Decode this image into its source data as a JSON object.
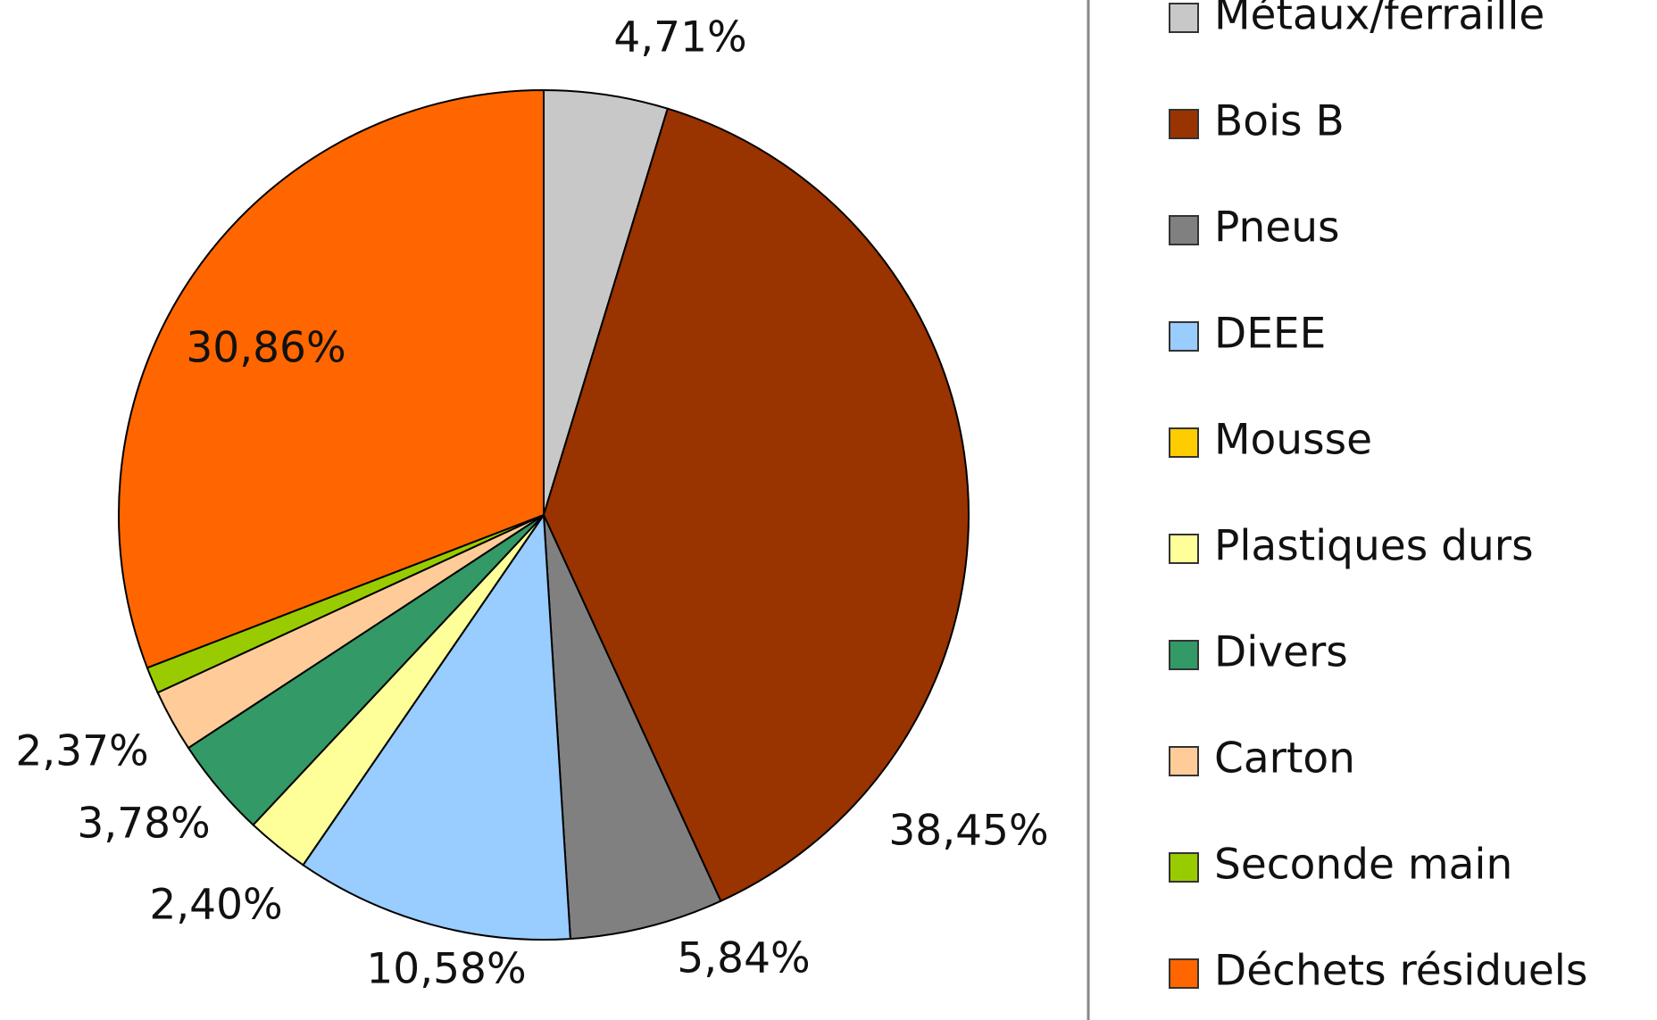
{
  "chart_data": {
    "type": "pie",
    "categories": [
      "Métaux/ferraille",
      "Bois B",
      "Pneus",
      "DEEE",
      "Mousse",
      "Plastiques durs",
      "Divers",
      "Carton",
      "Seconde main",
      "Déchets résiduels"
    ],
    "values": [
      4.71,
      38.45,
      5.84,
      10.58,
      0,
      2.4,
      3.78,
      2.37,
      1.01,
      30.86
    ],
    "value_labels": [
      "4,71%",
      "38,45%",
      "5,84%",
      "10,58%",
      null,
      "2,40%",
      "3,78%",
      "2,37%",
      null,
      "30,86%"
    ],
    "colors": [
      "#c8c8c8",
      "#993300",
      "#808080",
      "#99ccff",
      "#ffcc00",
      "#ffff99",
      "#339966",
      "#ffcc99",
      "#99cc00",
      "#ff6600"
    ],
    "legend": "right"
  }
}
